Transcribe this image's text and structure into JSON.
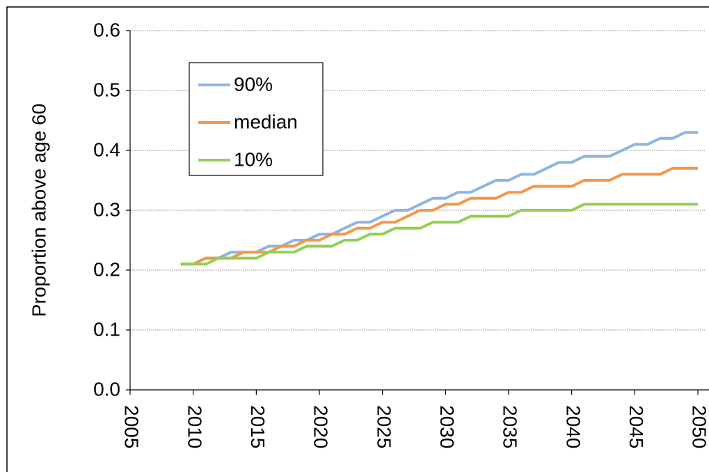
{
  "chart_data": {
    "type": "line",
    "y_label": "Proportion above age 60",
    "x": [
      2009,
      2010,
      2011,
      2012,
      2013,
      2014,
      2015,
      2016,
      2017,
      2018,
      2019,
      2020,
      2021,
      2022,
      2023,
      2024,
      2025,
      2026,
      2027,
      2028,
      2029,
      2030,
      2031,
      2032,
      2033,
      2034,
      2035,
      2036,
      2037,
      2038,
      2039,
      2040,
      2041,
      2042,
      2043,
      2044,
      2045,
      2046,
      2047,
      2048,
      2049,
      2050
    ],
    "series": [
      {
        "name": "90%",
        "color": "#8eb4e3",
        "values": [
          0.21,
          0.21,
          0.22,
          0.22,
          0.23,
          0.23,
          0.23,
          0.24,
          0.24,
          0.25,
          0.25,
          0.26,
          0.26,
          0.27,
          0.28,
          0.28,
          0.29,
          0.3,
          0.3,
          0.31,
          0.32,
          0.32,
          0.33,
          0.33,
          0.34,
          0.35,
          0.35,
          0.36,
          0.36,
          0.37,
          0.38,
          0.38,
          0.39,
          0.39,
          0.39,
          0.4,
          0.41,
          0.41,
          0.42,
          0.42,
          0.43,
          0.43
        ]
      },
      {
        "name": "median",
        "color": "#f79646",
        "values": [
          0.21,
          0.21,
          0.22,
          0.22,
          0.22,
          0.23,
          0.23,
          0.23,
          0.24,
          0.24,
          0.25,
          0.25,
          0.26,
          0.26,
          0.27,
          0.27,
          0.28,
          0.28,
          0.29,
          0.3,
          0.3,
          0.31,
          0.31,
          0.32,
          0.32,
          0.32,
          0.33,
          0.33,
          0.34,
          0.34,
          0.34,
          0.34,
          0.35,
          0.35,
          0.35,
          0.36,
          0.36,
          0.36,
          0.36,
          0.37,
          0.37,
          0.37
        ]
      },
      {
        "name": "10%",
        "color": "#92d050",
        "values": [
          0.21,
          0.21,
          0.21,
          0.22,
          0.22,
          0.22,
          0.22,
          0.23,
          0.23,
          0.23,
          0.24,
          0.24,
          0.24,
          0.25,
          0.25,
          0.26,
          0.26,
          0.27,
          0.27,
          0.27,
          0.28,
          0.28,
          0.28,
          0.29,
          0.29,
          0.29,
          0.29,
          0.3,
          0.3,
          0.3,
          0.3,
          0.3,
          0.31,
          0.31,
          0.31,
          0.31,
          0.31,
          0.31,
          0.31,
          0.31,
          0.31,
          0.31
        ]
      }
    ],
    "xlim": [
      2005,
      2050.5
    ],
    "xticks": [
      2005,
      2010,
      2015,
      2020,
      2025,
      2030,
      2035,
      2040,
      2045,
      2050
    ],
    "ylim": [
      0,
      0.6
    ],
    "yticks": [
      {
        "value": 0,
        "label": "0.0"
      },
      0.1,
      0.2,
      0.3,
      0.4,
      0.5,
      0.6
    ],
    "grid": true,
    "legend": "upper left"
  }
}
